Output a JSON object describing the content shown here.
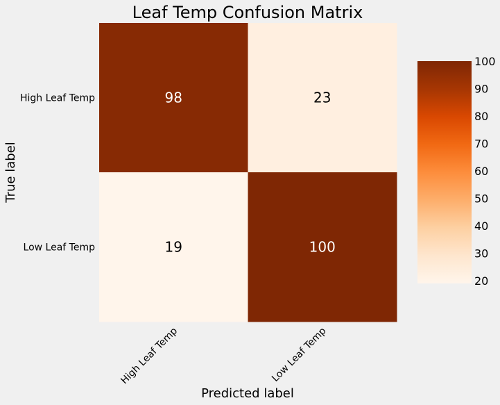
{
  "chart_data": {
    "type": "heatmap",
    "title": "Leaf Temp Confusion Matrix",
    "xlabel": "Predicted label",
    "ylabel": "True label",
    "x_categories": [
      "High Leaf Temp",
      "Low Leaf Temp"
    ],
    "y_categories": [
      "High Leaf Temp",
      "Low Leaf Temp"
    ],
    "values": [
      [
        98,
        23
      ],
      [
        19,
        100
      ]
    ],
    "colormap": "Oranges",
    "colorbar": {
      "min": 19,
      "max": 100,
      "ticks": [
        20,
        30,
        40,
        50,
        60,
        70,
        80,
        90,
        100
      ],
      "position": "right"
    },
    "grid": false
  },
  "colors": {
    "background": "#f0f0f0",
    "low": "#fff5eb",
    "high": "#7f2704"
  }
}
